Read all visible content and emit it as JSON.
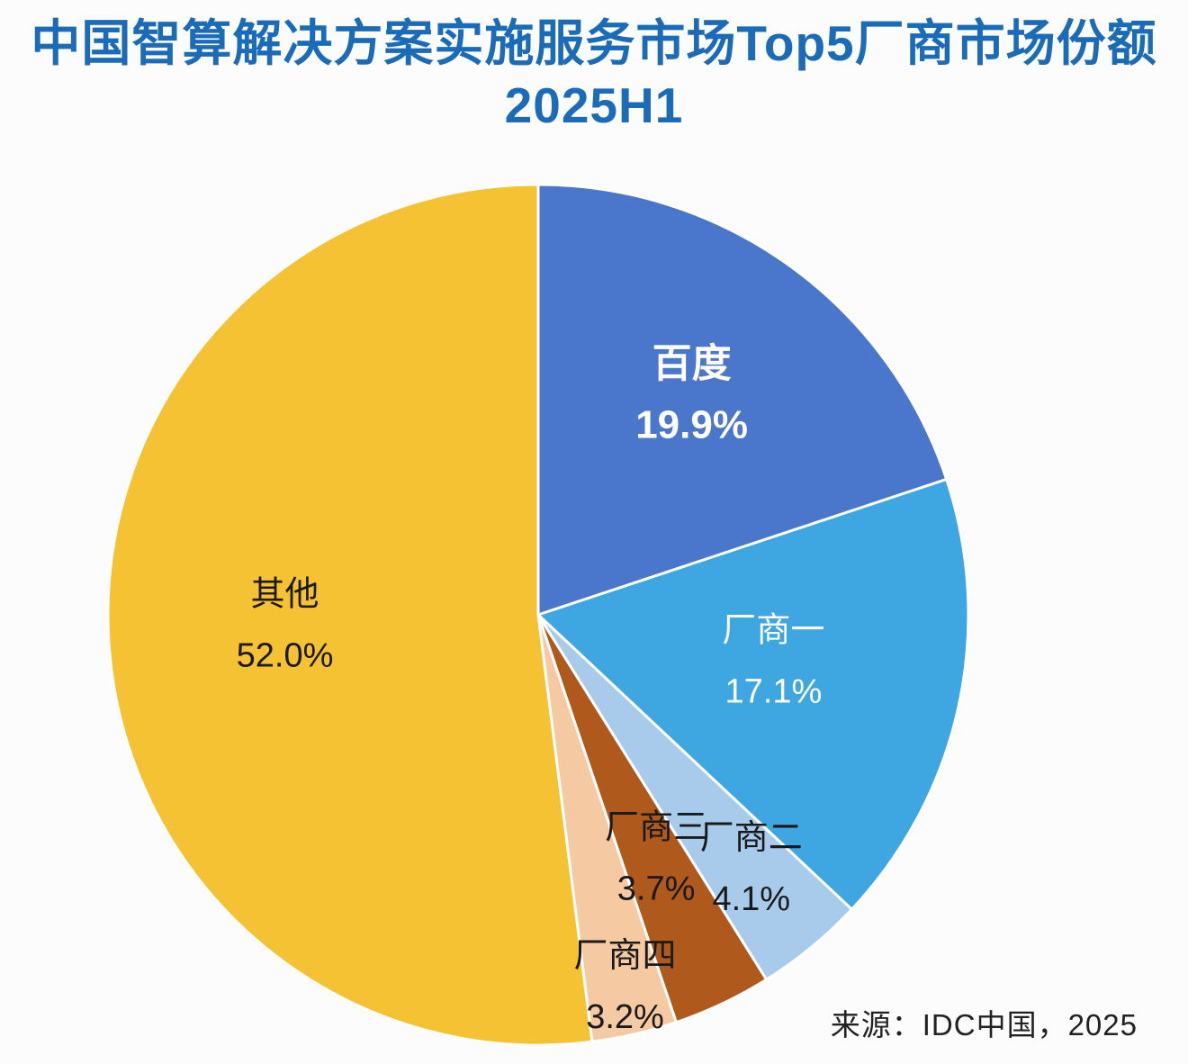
{
  "header": {
    "title_line1": "中国智算解决方案实施服务市场Top5厂商市场份额",
    "title_line2": "2025H1",
    "title_color": "#1b6cb8"
  },
  "footer": {
    "source": "来源：IDC中国，2025"
  },
  "chart_data": {
    "type": "pie",
    "title": "中国智算解决方案实施服务市场Top5厂商市场份额 2025H1",
    "start_angle_deg": -90,
    "direction": "clockwise",
    "total": 100,
    "legend_position": "none",
    "slice_border_color": "#ffffff",
    "slices": [
      {
        "label": "百度",
        "value": 19.9,
        "value_label": "19.9%",
        "color": "#4a76cc",
        "label_color": "#ffffff",
        "label_radius": 0.61,
        "bold": true
      },
      {
        "label": "厂商一",
        "value": 17.1,
        "value_label": "17.1%",
        "color": "#3ea6e0",
        "label_color": "#ffffff",
        "label_radius": 0.56,
        "bold": false
      },
      {
        "label": "厂商二",
        "value": 4.1,
        "value_label": "4.1%",
        "color": "#a8cbec",
        "label_color": "#1a1a1a",
        "label_radius": 0.78,
        "bold": false
      },
      {
        "label": "厂商三",
        "value": 3.7,
        "value_label": "3.7%",
        "color": "#b0591c",
        "label_color": "#1a1a1a",
        "label_radius": 0.64,
        "bold": false
      },
      {
        "label": "厂商四",
        "value": 3.2,
        "value_label": "3.2%",
        "color": "#f5c9a2",
        "label_color": "#1a1a1a",
        "label_radius": 0.9,
        "bold": false
      },
      {
        "label": "其他",
        "value": 52.0,
        "value_label": "52.0%",
        "color": "#f5c233",
        "label_color": "#1a1a1a",
        "label_radius": 0.59,
        "bold": false
      }
    ]
  }
}
